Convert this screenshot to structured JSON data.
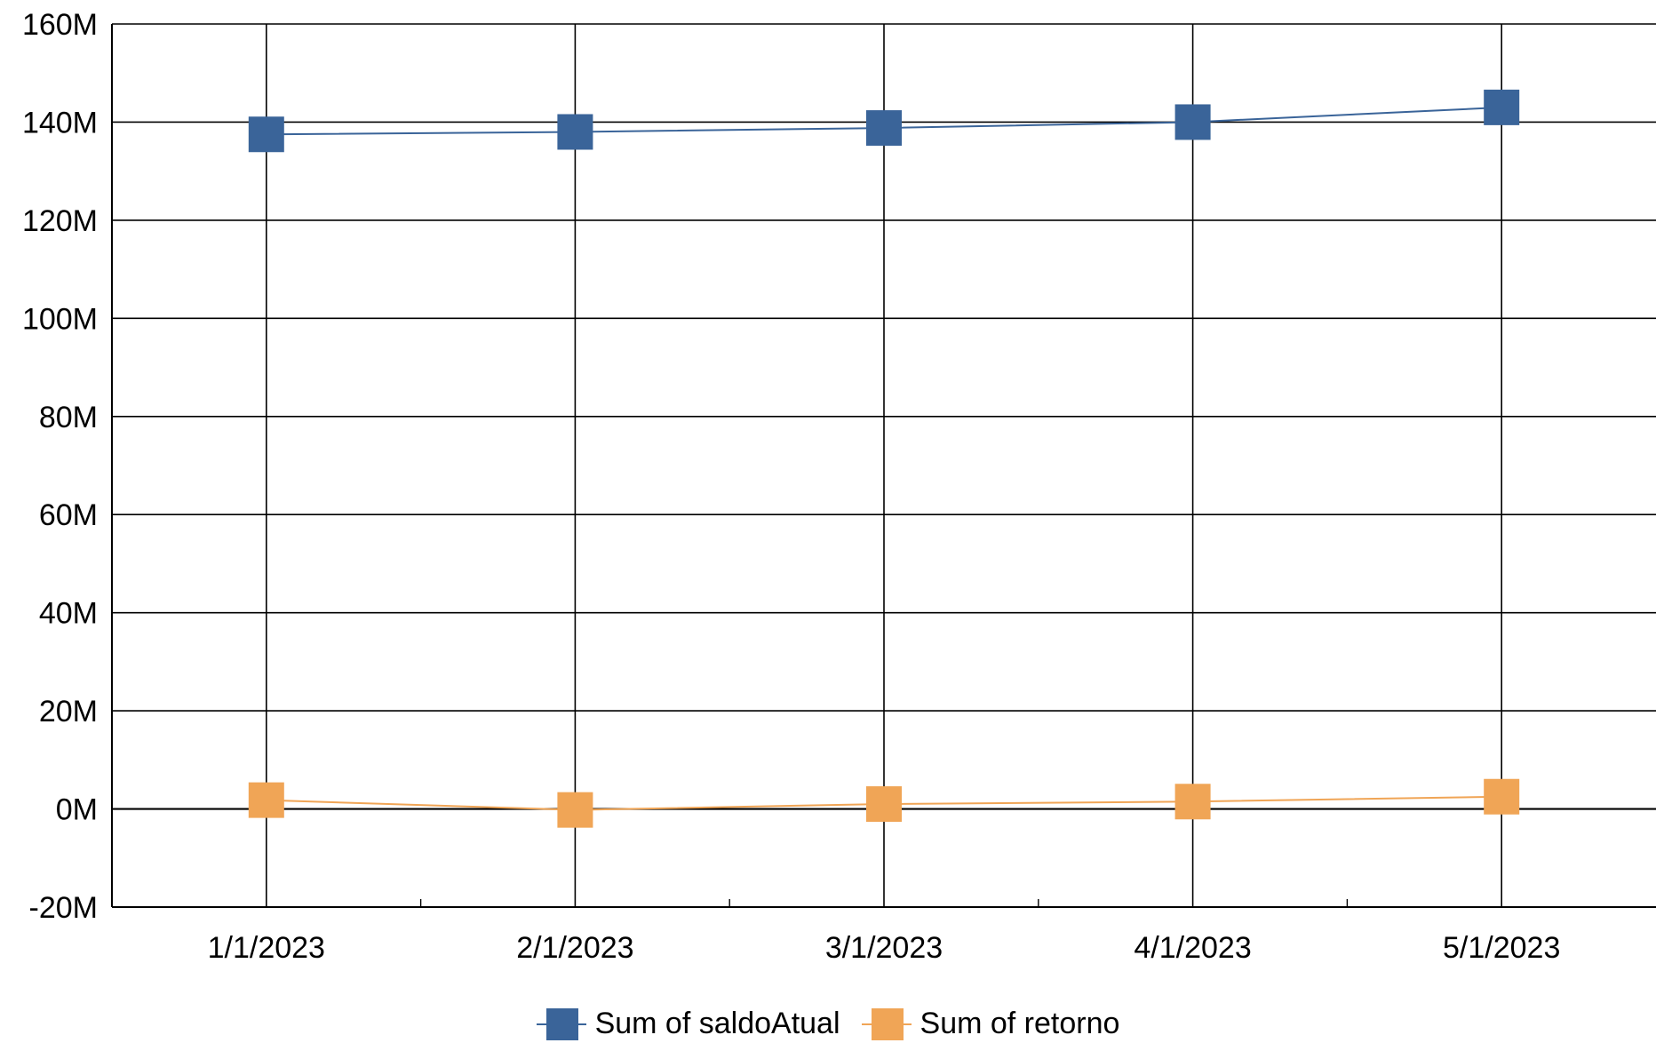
{
  "chart_data": {
    "type": "line",
    "categories": [
      "1/1/2023",
      "2/1/2023",
      "3/1/2023",
      "4/1/2023",
      "5/1/2023"
    ],
    "series": [
      {
        "name": "Sum of saldoAtual",
        "color": "#3A6499",
        "values": [
          137.5,
          138.0,
          138.8,
          140.0,
          143.0
        ]
      },
      {
        "name": "Sum of retorno",
        "color": "#F0A556",
        "values": [
          1.8,
          -0.2,
          1.0,
          1.5,
          2.5
        ]
      }
    ],
    "value_unit": "M",
    "ylim": [
      -20,
      160
    ],
    "y_ticks": [
      -20,
      0,
      20,
      40,
      60,
      80,
      100,
      120,
      140,
      160
    ],
    "y_tick_labels": [
      "-20M",
      "0M",
      "20M",
      "40M",
      "60M",
      "80M",
      "100M",
      "120M",
      "140M",
      "160M"
    ],
    "grid": true,
    "legend_position": "bottom",
    "title": "",
    "xlabel": "",
    "ylabel": ""
  }
}
